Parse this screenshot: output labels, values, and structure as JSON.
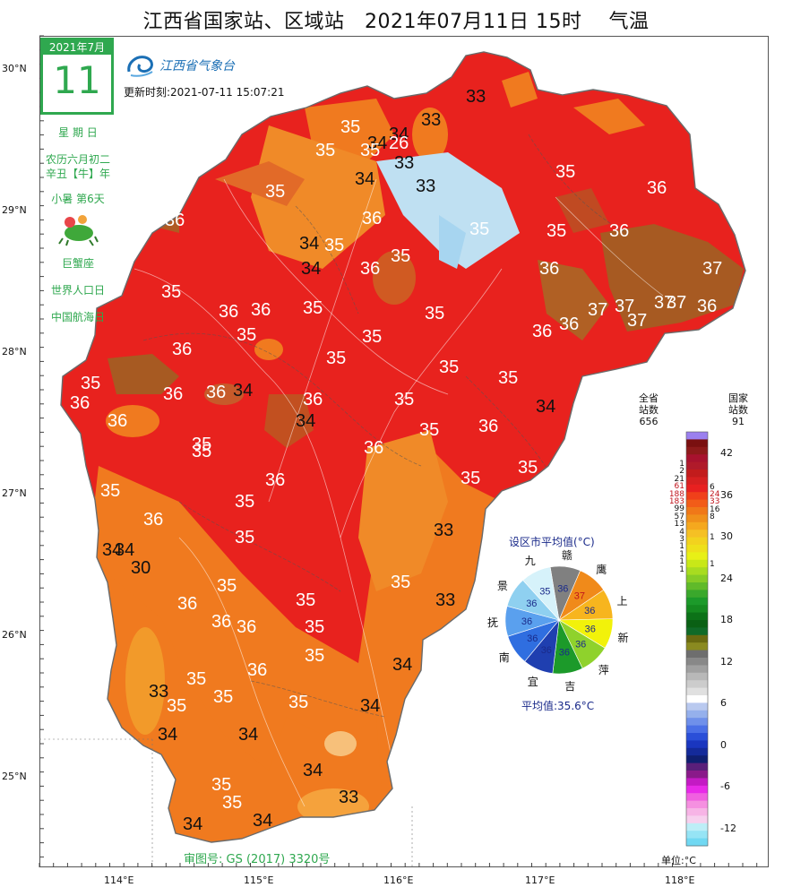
{
  "title": "江西省国家站、区域站　2021年07月11日 15时　 气温",
  "calendar": {
    "month": "2021年7月",
    "day": "11"
  },
  "almanac": [
    "星 期 日",
    "农历六月初二",
    "辛丑【牛】年",
    "小暑 第6天",
    "巨蟹座",
    "世界人口日",
    "中国航海日"
  ],
  "logo_text": "江西省气象台",
  "update_time": "更新时刻:2021-07-11 15:07:21",
  "latitudes": [
    "30°N",
    "29°N",
    "28°N",
    "27°N",
    "26°N",
    "25°N"
  ],
  "longitudes": [
    "114°E",
    "115°E",
    "116°E",
    "117°E",
    "118°E"
  ],
  "approval": "审图号: GS (2017) 3320号",
  "temps": [
    "33",
    "33",
    "35",
    "34",
    "26",
    "34",
    "33",
    "35",
    "35",
    "34",
    "33",
    "36",
    "36",
    "35",
    "34",
    "35",
    "36",
    "34",
    "35",
    "36",
    "37",
    "35",
    "36",
    "35",
    "35",
    "35",
    "36",
    "37",
    "37",
    "37",
    "36",
    "37",
    "37",
    "36",
    "36",
    "35",
    "36",
    "35",
    "35",
    "35",
    "36",
    "35",
    "36",
    "34",
    "36",
    "36",
    "35",
    "36",
    "35",
    "35",
    "35",
    "36",
    "36",
    "34",
    "35",
    "34",
    "36",
    "35",
    "35",
    "36",
    "36",
    "35",
    "35",
    "36",
    "35",
    "35",
    "34",
    "35",
    "36",
    "35",
    "33",
    "34",
    "30",
    "35",
    "36",
    "35",
    "35",
    "33",
    "36",
    "35",
    "35",
    "36",
    "33",
    "35",
    "34",
    "35",
    "34",
    "34",
    "34",
    "33",
    "35",
    "34",
    "34",
    "35",
    "34",
    "35"
  ],
  "pie": {
    "title": "设区市平均值(°C)",
    "average": "平均值:35.6°C",
    "cities": [
      {
        "name": "赣",
        "value": "36",
        "color": "#808080"
      },
      {
        "name": "鹰",
        "value": "37",
        "color": "#f08a1a"
      },
      {
        "name": "上",
        "value": "36",
        "color": "#f7b51e"
      },
      {
        "name": "新",
        "value": "36",
        "color": "#f2f20a"
      },
      {
        "name": "萍",
        "value": "36",
        "color": "#8fd22c"
      },
      {
        "name": "吉",
        "value": "36",
        "color": "#1c9a2a"
      },
      {
        "name": "宜",
        "value": "36",
        "color": "#1f3fb0"
      },
      {
        "name": "南",
        "value": "36",
        "color": "#2f6ee0"
      },
      {
        "name": "抚",
        "value": "36",
        "color": "#5aa0ee"
      },
      {
        "name": "景",
        "value": "36",
        "color": "#8fd0f0"
      },
      {
        "name": "九",
        "value": "35",
        "color": "#d6f2fa"
      }
    ]
  },
  "legend": {
    "province_head": "全省\n站数\n656",
    "national_head": "国家\n站数\n91",
    "ticks": [
      "42",
      "36",
      "30",
      "24",
      "18",
      "12",
      "6",
      "0",
      "-6",
      "-12"
    ],
    "province_counts": [
      "1",
      "2",
      "21",
      "61",
      "188",
      "183",
      "99",
      "57",
      "13",
      "4",
      "3",
      "1",
      "1",
      "1",
      "1"
    ],
    "national_counts": [
      "6",
      "24",
      "33",
      "16",
      "8",
      "1",
      "1"
    ],
    "unit": "单位:°C",
    "colors": [
      "#9b80ef",
      "#7a1010",
      "#8e1a1a",
      "#a8122e",
      "#b01a2a",
      "#c21c1c",
      "#d62020",
      "#e82020",
      "#f0401a",
      "#f25c18",
      "#f07818",
      "#f0901a",
      "#f5a81e",
      "#f5c024",
      "#f2d21e",
      "#eee01a",
      "#e8f016",
      "#c8e818",
      "#a8dc20",
      "#86cc26",
      "#60ba2a",
      "#3aa82c",
      "#1c9a2a",
      "#158a20",
      "#0c7218",
      "#0a6014",
      "#106a28",
      "#6a6a10",
      "#8a8a20",
      "#6e6e6e",
      "#888888",
      "#a0a0a0",
      "#b8b8b8",
      "#cccccc",
      "#e0e0e0",
      "#ffffff",
      "#b9c9ef",
      "#95b0ec",
      "#6f90ea",
      "#4a6fe6",
      "#2a4fd8",
      "#1a36bf",
      "#142a9a",
      "#0f1f70",
      "#5a1f7a",
      "#8a1a8a",
      "#c41ac4",
      "#e82ae8",
      "#f060e0",
      "#f590e0",
      "#f7b4e6",
      "#f7d0ee",
      "#bdeef7",
      "#96e4f5",
      "#70d8f2"
    ]
  }
}
